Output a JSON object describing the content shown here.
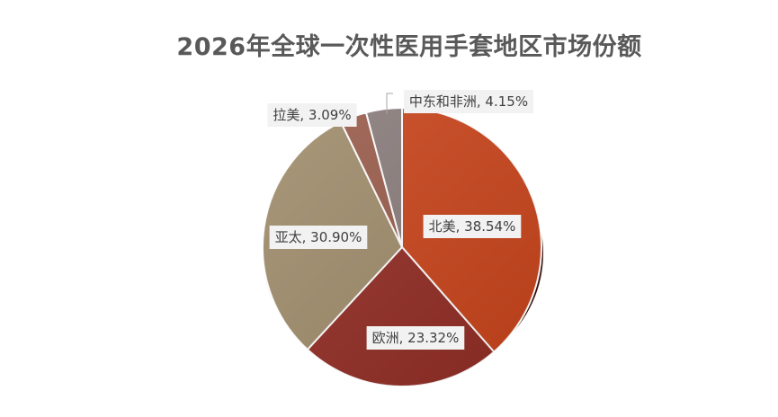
{
  "chart_data": {
    "type": "pie",
    "title": "2026年全球一次性医用手套地区市场份额",
    "slices": [
      {
        "name": "北美",
        "value": 38.54,
        "label": "北美, 38.54%",
        "color": "#c9451c"
      },
      {
        "name": "欧洲",
        "value": 23.32,
        "label": "欧洲, 23.32%",
        "color": "#922d25"
      },
      {
        "name": "亚太",
        "value": 30.9,
        "label": "亚太, 30.90%",
        "color": "#a08c6c"
      },
      {
        "name": "拉美",
        "value": 3.09,
        "label": "拉美, 3.09%",
        "color": "#9a5d4c"
      },
      {
        "name": "中东和非洲",
        "value": 4.15,
        "label": "中东和非洲, 4.15%",
        "color": "#8a7d7c"
      }
    ]
  }
}
